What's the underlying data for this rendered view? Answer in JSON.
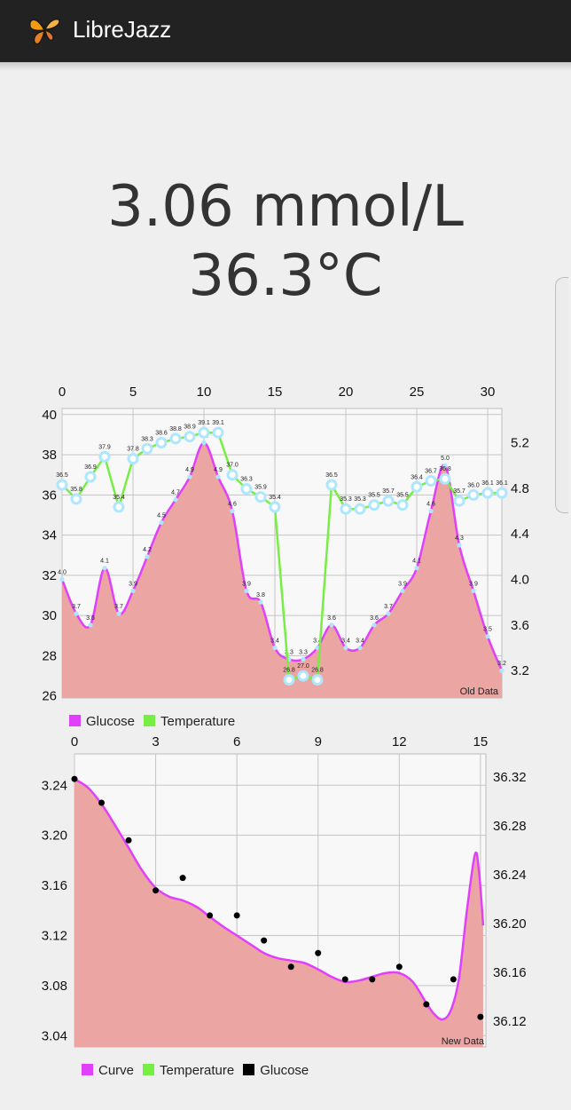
{
  "app": {
    "title": "LibreJazz",
    "icon": "butterfly-icon"
  },
  "current": {
    "glucose": "3.06 mmol/L",
    "temperature": "36.3°C"
  },
  "colors": {
    "glucose_fill": "#eba5a2",
    "glucose_line": "#e040fb",
    "temperature_line": "#76ee44",
    "marker": "#aee6ff",
    "black": "#000000"
  },
  "chart_data": [
    {
      "type": "line",
      "description_label": "Old Data",
      "x_ticks": [
        "0",
        "5",
        "10",
        "15",
        "20",
        "25",
        "30"
      ],
      "y_left_ticks": [
        "26",
        "28",
        "30",
        "32",
        "34",
        "36",
        "38",
        "40"
      ],
      "y_right_ticks": [
        "3.2",
        "3.6",
        "4.0",
        "4.4",
        "4.8",
        "5.2"
      ],
      "xlim": [
        0,
        31
      ],
      "ylim_left": [
        25.9,
        40.3
      ],
      "ylim_right": [
        2.96,
        5.5
      ],
      "legend": [
        "Glucose",
        "Temperature"
      ],
      "series": [
        {
          "name": "Glucose",
          "axis": "right",
          "x": [
            0,
            1,
            2,
            3,
            4,
            5,
            6,
            7,
            8,
            9,
            10,
            11,
            12,
            13,
            14,
            15,
            16,
            17,
            18,
            19,
            20,
            21,
            22,
            23,
            24,
            25,
            26,
            27,
            28,
            29,
            30,
            31
          ],
          "values": [
            4.0,
            3.7,
            3.6,
            4.1,
            3.7,
            3.9,
            4.2,
            4.5,
            4.7,
            4.9,
            5.2,
            4.9,
            4.6,
            3.9,
            3.8,
            3.4,
            3.3,
            3.3,
            3.4,
            3.6,
            3.4,
            3.4,
            3.6,
            3.7,
            3.9,
            4.1,
            4.6,
            5.0,
            4.3,
            3.9,
            3.5,
            3.2
          ],
          "labels": [
            "4.0",
            "3.7",
            "3.6",
            "4.1",
            "3.7",
            "3.9",
            "4.2",
            "4.5",
            "4.7",
            "4.9",
            "5.2",
            "4.9",
            "4.6",
            "3.9",
            "3.8",
            "3.4",
            "3.3",
            "3.3",
            "3.4",
            "3.6",
            "3.4",
            "3.4",
            "3.6",
            "3.7",
            "3.9",
            "4.1",
            "4.6",
            "5.0",
            "4.3",
            "3.9",
            "3.5",
            "3.2"
          ]
        },
        {
          "name": "Temperature",
          "axis": "left",
          "x": [
            0,
            1,
            2,
            3,
            4,
            5,
            6,
            7,
            8,
            9,
            10,
            11,
            12,
            13,
            14,
            15,
            16,
            17,
            18,
            19,
            20,
            21,
            22,
            23,
            24,
            25,
            26,
            27,
            28,
            29,
            30,
            31
          ],
          "values": [
            36.5,
            35.8,
            36.9,
            37.9,
            35.4,
            37.8,
            38.3,
            38.6,
            38.8,
            38.9,
            39.1,
            39.1,
            37.0,
            36.3,
            35.9,
            35.4,
            26.8,
            27.0,
            26.8,
            36.5,
            35.3,
            35.3,
            35.5,
            35.7,
            35.5,
            36.4,
            36.7,
            36.8,
            35.7,
            36.0,
            36.1,
            36.1
          ],
          "labels": [
            "36.5",
            "35.8",
            "36.9",
            "37.9",
            "35.4",
            "37.8",
            "38.3",
            "38.6",
            "38.8",
            "38.9",
            "39.1",
            "39.1",
            "37.0",
            "36.3",
            "35.9",
            "35.4",
            "26.8",
            "27.0",
            "26.8",
            "36.5",
            "35.3",
            "35.3",
            "35.5",
            "35.7",
            "35.5",
            "36.4",
            "36.7",
            "36.8",
            "35.7",
            "36.0",
            "36.1",
            "36.1"
          ]
        }
      ]
    },
    {
      "type": "line",
      "description_label": "New Data",
      "x_ticks": [
        "0",
        "3",
        "6",
        "9",
        "12",
        "15"
      ],
      "y_left_ticks": [
        "3.04",
        "3.08",
        "3.12",
        "3.16",
        "3.20",
        "3.24"
      ],
      "y_right_ticks": [
        "36.12",
        "36.16",
        "36.20",
        "36.24",
        "36.28",
        "36.32"
      ],
      "xlim": [
        0,
        15.2
      ],
      "ylim_left": [
        3.031,
        3.265
      ],
      "ylim_right": [
        36.099,
        36.339
      ],
      "legend": [
        "Curve",
        "Temperature",
        "Glucose"
      ],
      "series": [
        {
          "name": "Curve",
          "axis": "left",
          "x": [
            0,
            0.5,
            1,
            1.5,
            2,
            2.5,
            3,
            3.5,
            4,
            4.5,
            5,
            5.5,
            6,
            6.5,
            7,
            7.5,
            8,
            8.5,
            9,
            9.5,
            10,
            10.5,
            11,
            11.5,
            12,
            12.5,
            13,
            13.3,
            13.6,
            13.9,
            14.2,
            14.5,
            14.8,
            14.95,
            15.1
          ],
          "values": [
            3.245,
            3.238,
            3.225,
            3.208,
            3.19,
            3.172,
            3.158,
            3.151,
            3.148,
            3.143,
            3.135,
            3.127,
            3.12,
            3.113,
            3.106,
            3.102,
            3.1,
            3.098,
            3.093,
            3.087,
            3.083,
            3.084,
            3.087,
            3.09,
            3.09,
            3.083,
            3.066,
            3.057,
            3.053,
            3.06,
            3.085,
            3.14,
            3.185,
            3.17,
            3.128
          ]
        },
        {
          "name": "Glucose",
          "axis": "left",
          "x": [
            0,
            1,
            2,
            3,
            4,
            5,
            6,
            7,
            8,
            9,
            10,
            11,
            12,
            13,
            14,
            15
          ],
          "values": [
            3.245,
            3.226,
            3.196,
            3.156,
            3.166,
            3.136,
            3.136,
            3.116,
            3.095,
            3.106,
            3.085,
            3.085,
            3.095,
            3.065,
            3.085,
            3.055
          ]
        }
      ]
    }
  ]
}
